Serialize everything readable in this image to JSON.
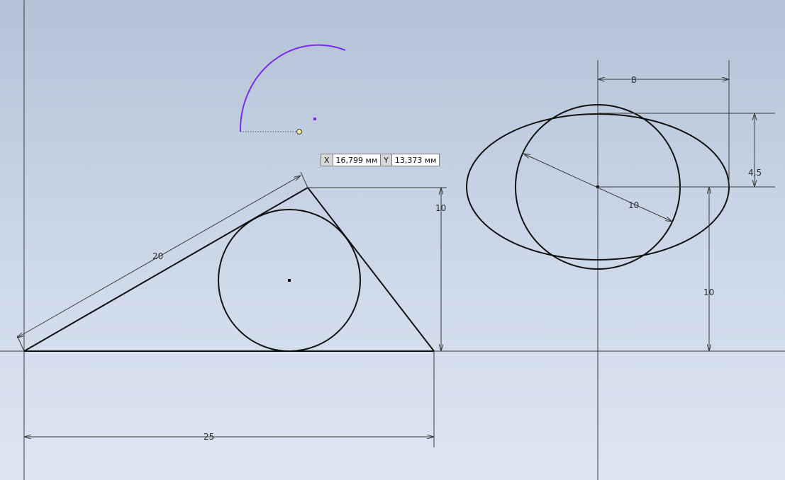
{
  "sketch": {
    "dimensions": {
      "hypotenuse": "20",
      "triangle_height": "10",
      "base_length": "25",
      "ellipse_offset_x": "8",
      "ellipse_minor_half": "4,5",
      "circle_diameter": "10",
      "ellipse_height": "10"
    }
  },
  "coordinate_input": {
    "x_label": "X",
    "x_value": "16,799 мм",
    "y_label": "Y",
    "y_value": "13,373 мм"
  },
  "colors": {
    "geometry": "#111111",
    "dimension": "#3a3a3a",
    "active_arc": "#7a2cf0",
    "background_top": "#b4c2d6",
    "background_bottom": "#dde6f4"
  }
}
